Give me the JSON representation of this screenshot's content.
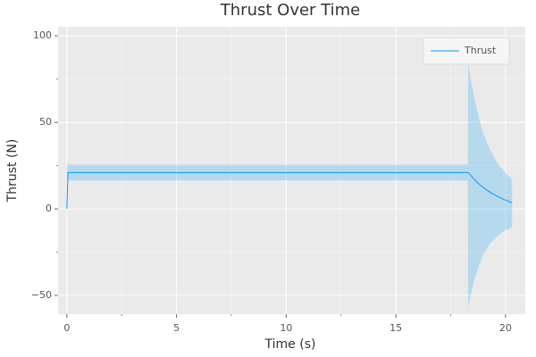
{
  "chart_data": {
    "type": "line",
    "title": "Thrust Over Time",
    "x_label": "Time (s)",
    "y_label": "Thrust (N)",
    "x": [
      0,
      0.05,
      18.28,
      18.3,
      18.4,
      18.6,
      18.8,
      19.0,
      19.3,
      19.6,
      19.9,
      20.3
    ],
    "series": [
      {
        "name": "Thrust",
        "color": "#009afa",
        "values": [
          0,
          21,
          21,
          21,
          19.6,
          16.8,
          14.3,
          12.2,
          9.6,
          7.4,
          5.6,
          3.6
        ],
        "band": {
          "upper": [
            25.6,
            25.6,
            25.6,
            84,
            76,
            63,
            52,
            43,
            34,
            27,
            22,
            17
          ],
          "lower": [
            16.4,
            16.4,
            16.4,
            -57,
            -50,
            -40,
            -32,
            -26,
            -20,
            -16,
            -13,
            -10.5
          ]
        }
      }
    ],
    "xlim": [
      -0.4,
      20.9
    ],
    "ylim": [
      -60.8,
      105.2
    ],
    "xticks": [
      0,
      5,
      10,
      15,
      20
    ],
    "xminorticks": [
      2.5,
      7.5,
      12.5,
      17.5
    ],
    "yticks": [
      {
        "value": -50,
        "label": "−50"
      },
      0,
      50,
      100
    ],
    "yminorticks": [
      -25,
      25,
      75
    ],
    "grid": true,
    "legend": "top-right"
  }
}
